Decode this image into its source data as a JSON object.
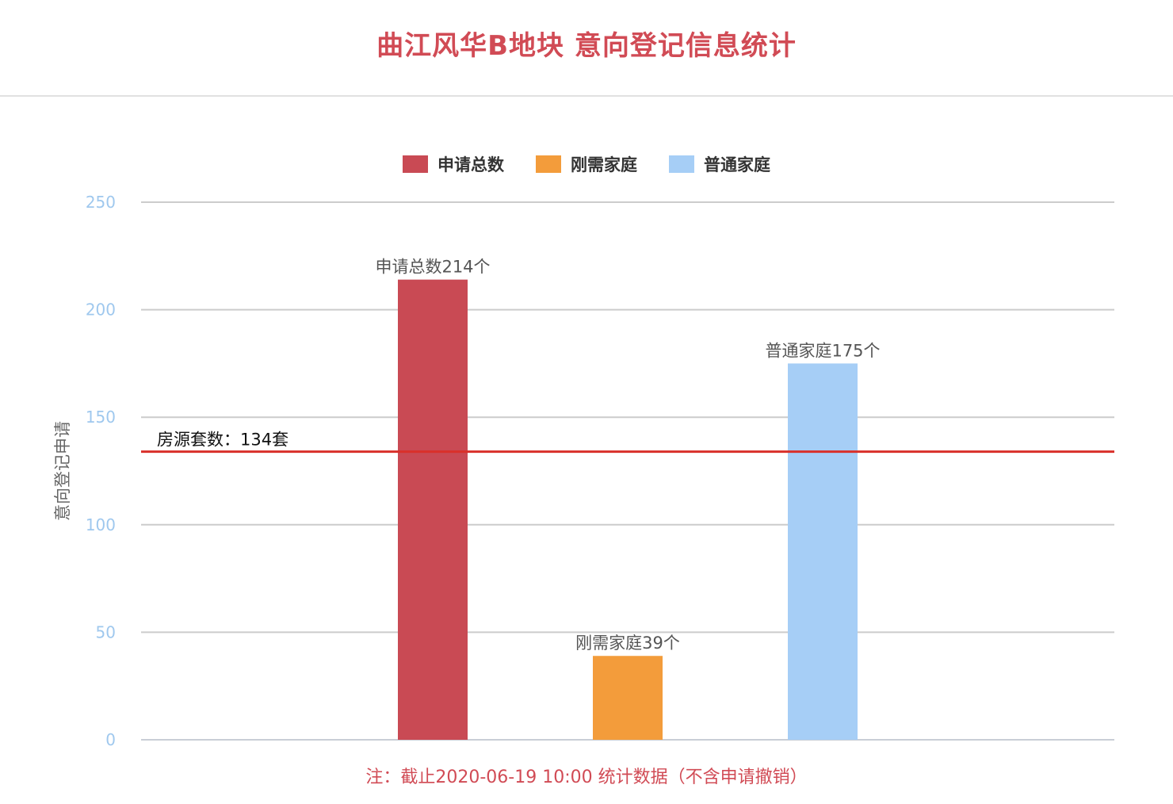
{
  "title": "曲江风华B地块 意向登记信息统计",
  "footnote": "注：截止2020-06-19 10:00 统计数据（不含申请撤销）",
  "chart_data": {
    "type": "bar",
    "title": "曲江风华B地块 意向登记信息统计",
    "xlabel": "",
    "ylabel": "意向登记申请",
    "ylim": [
      0,
      250
    ],
    "yticks": [
      0,
      50,
      100,
      150,
      200,
      250
    ],
    "grid": true,
    "legend_position": "top-center",
    "series": [
      {
        "name": "申请总数",
        "value": 214,
        "color": "#c94a54",
        "label": "申请总数214个"
      },
      {
        "name": "刚需家庭",
        "value": 39,
        "color": "#f39c3b",
        "label": "刚需家庭39个"
      },
      {
        "name": "普通家庭",
        "value": 175,
        "color": "#a6cef6",
        "label": "普通家庭175个"
      }
    ],
    "reference_line": {
      "value": 134,
      "label": "房源套数：134套",
      "color": "#d9302a"
    }
  }
}
